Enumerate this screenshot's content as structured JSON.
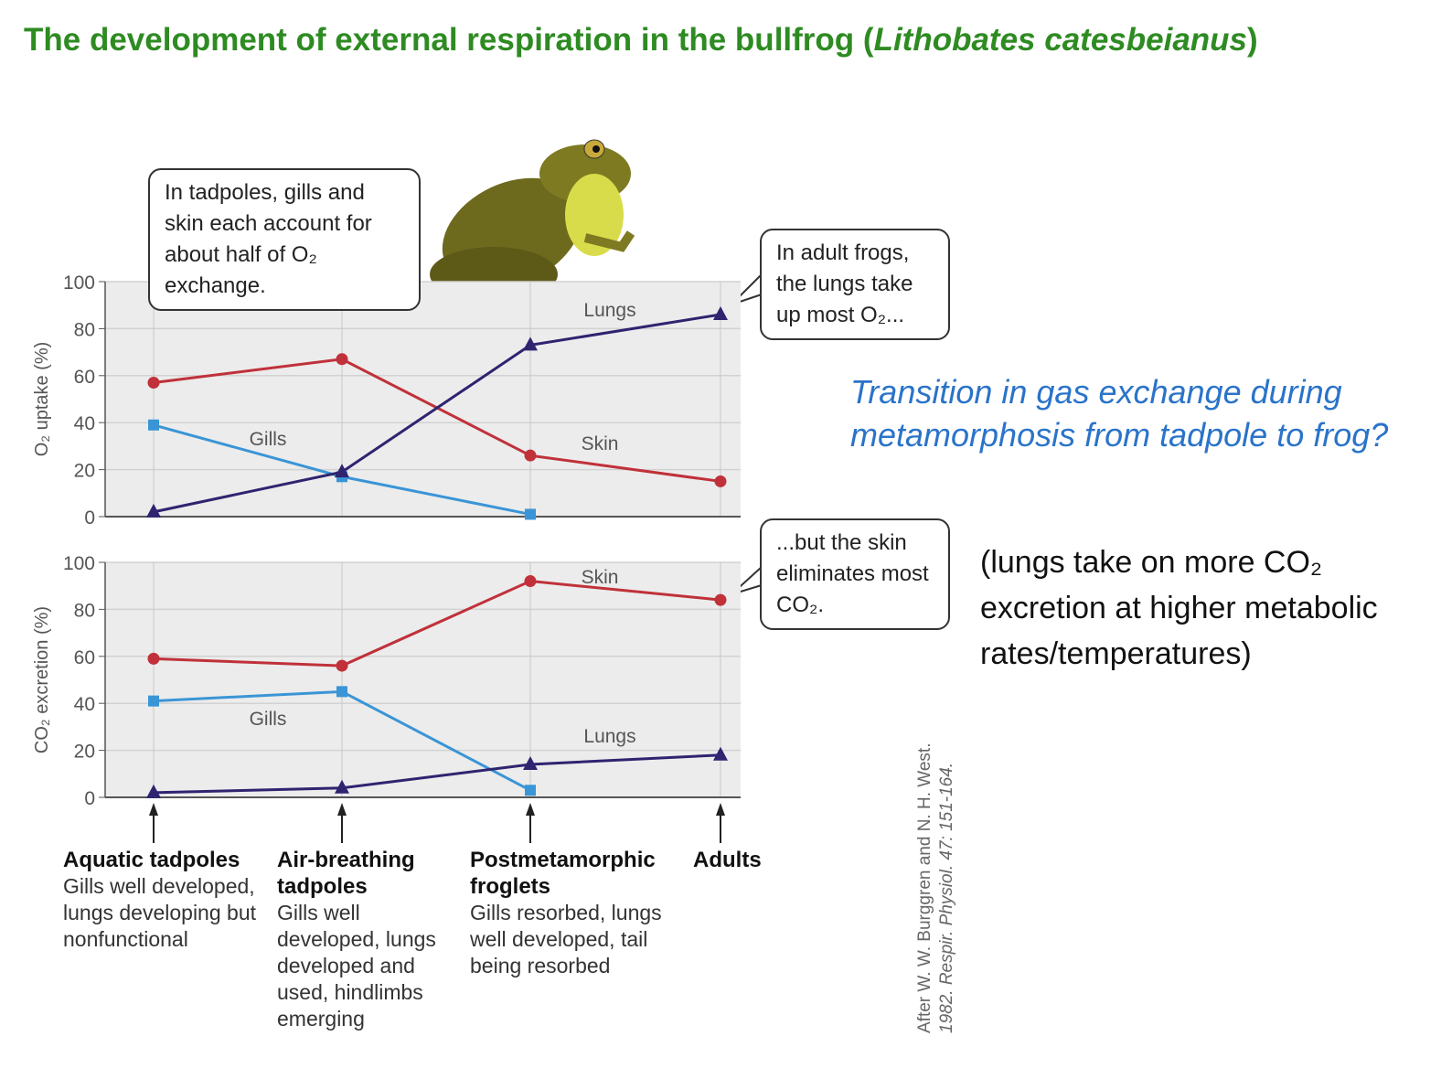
{
  "title": {
    "main": "The development of external respiration in the bullfrog (",
    "species": "Lithobates catesbeianus",
    "close": ")"
  },
  "callouts": {
    "tadpoles": "In tadpoles, gills and skin each account for about half of O₂ exchange.",
    "adult_o2": "In adult frogs, the lungs take up most O₂...",
    "adult_co2": "...but the skin eliminates most CO₂."
  },
  "question": "Transition in gas exchange during metamorphosis from tadpole to frog?",
  "note": "(lungs take on more CO₂ excretion at higher metabolic rates/temperatures)",
  "credit": {
    "line1": "After W. W. Burggren and N. H. West.",
    "line2": "1982. Respir. Physiol. 47: 151-164."
  },
  "stages": [
    {
      "name": "Aquatic tadpoles",
      "desc": "Gills well developed, lungs developing but nonfunctional"
    },
    {
      "name": "Air-breathing tadpoles",
      "desc": "Gills well developed, lungs developed and used, hindlimbs emerging"
    },
    {
      "name": "Postmetamorphic froglets",
      "desc": "Gills resorbed, lungs well developed, tail being resorbed"
    },
    {
      "name": "Adults",
      "desc": ""
    }
  ],
  "colors": {
    "skin": "#c0313a",
    "gills": "#3a95d6",
    "lungs": "#2e2470",
    "plot_bg": "#ececec"
  },
  "chart_data": [
    {
      "type": "line",
      "ylabel": "O₂ uptake (%)",
      "ylim": [
        0,
        100
      ],
      "yticks": [
        "0",
        "20",
        "40",
        "60",
        "80",
        "100"
      ],
      "grid": true,
      "categories": [
        "Aquatic tadpoles",
        "Air-breathing tadpoles",
        "Postmetamorphic froglets",
        "Adults"
      ],
      "series": [
        {
          "name": "Skin",
          "marker": "circle",
          "values": [
            57,
            67,
            26,
            15
          ]
        },
        {
          "name": "Gills",
          "marker": "square",
          "values": [
            39,
            17,
            1,
            null
          ]
        },
        {
          "name": "Lungs",
          "marker": "triangle",
          "values": [
            2,
            19,
            73,
            86
          ]
        }
      ]
    },
    {
      "type": "line",
      "ylabel": "CO₂ excretion (%)",
      "ylim": [
        0,
        100
      ],
      "yticks": [
        "0",
        "20",
        "40",
        "60",
        "80",
        "100"
      ],
      "grid": true,
      "categories": [
        "Aquatic tadpoles",
        "Air-breathing tadpoles",
        "Postmetamorphic froglets",
        "Adults"
      ],
      "series": [
        {
          "name": "Skin",
          "marker": "circle",
          "values": [
            59,
            56,
            92,
            84
          ]
        },
        {
          "name": "Gills",
          "marker": "square",
          "values": [
            41,
            45,
            3,
            null
          ]
        },
        {
          "name": "Lungs",
          "marker": "triangle",
          "values": [
            2,
            4,
            14,
            18
          ]
        }
      ]
    }
  ]
}
